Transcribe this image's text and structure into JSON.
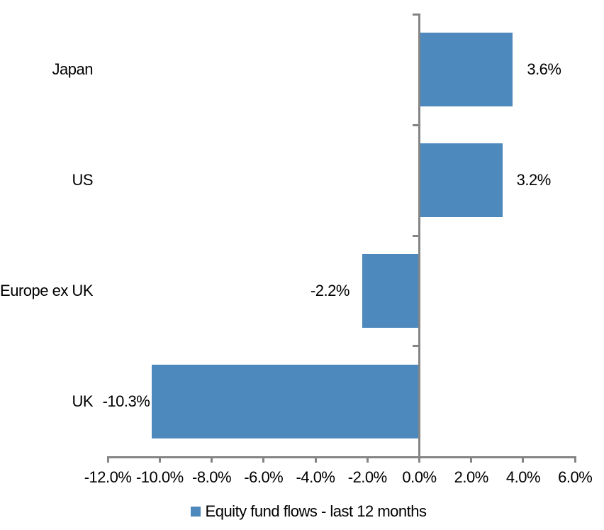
{
  "chart_data": {
    "type": "bar",
    "orientation": "horizontal",
    "title": "",
    "categories": [
      "Japan",
      "US",
      "Europe ex UK",
      "UK"
    ],
    "series": [
      {
        "name": "Equity fund flows - last 12 months",
        "values": [
          3.6,
          3.2,
          -2.2,
          -10.3
        ],
        "color": "#4E89BE"
      }
    ],
    "data_labels": [
      "3.6%",
      "3.2%",
      "-2.2%",
      "-10.3%"
    ],
    "xlabel": "",
    "ylabel": "",
    "xlim": [
      -12,
      6
    ],
    "x_ticks": [
      -12,
      -10,
      -8,
      -6,
      -4,
      -2,
      0,
      2,
      4,
      6
    ],
    "x_tick_labels": [
      "-12.0%",
      "-10.0%",
      "-8.0%",
      "-6.0%",
      "-4.0%",
      "-2.0%",
      "0.0%",
      "2.0%",
      "4.0%",
      "6.0%"
    ],
    "grid": false,
    "legend": {
      "position": "bottom",
      "marker": "square",
      "entries": [
        "Equity fund flows - last 12 months"
      ]
    },
    "colors": {
      "bar": "#4E89BE",
      "axis": "#858585",
      "text": "#000000",
      "background": "#FFFFFF"
    }
  }
}
